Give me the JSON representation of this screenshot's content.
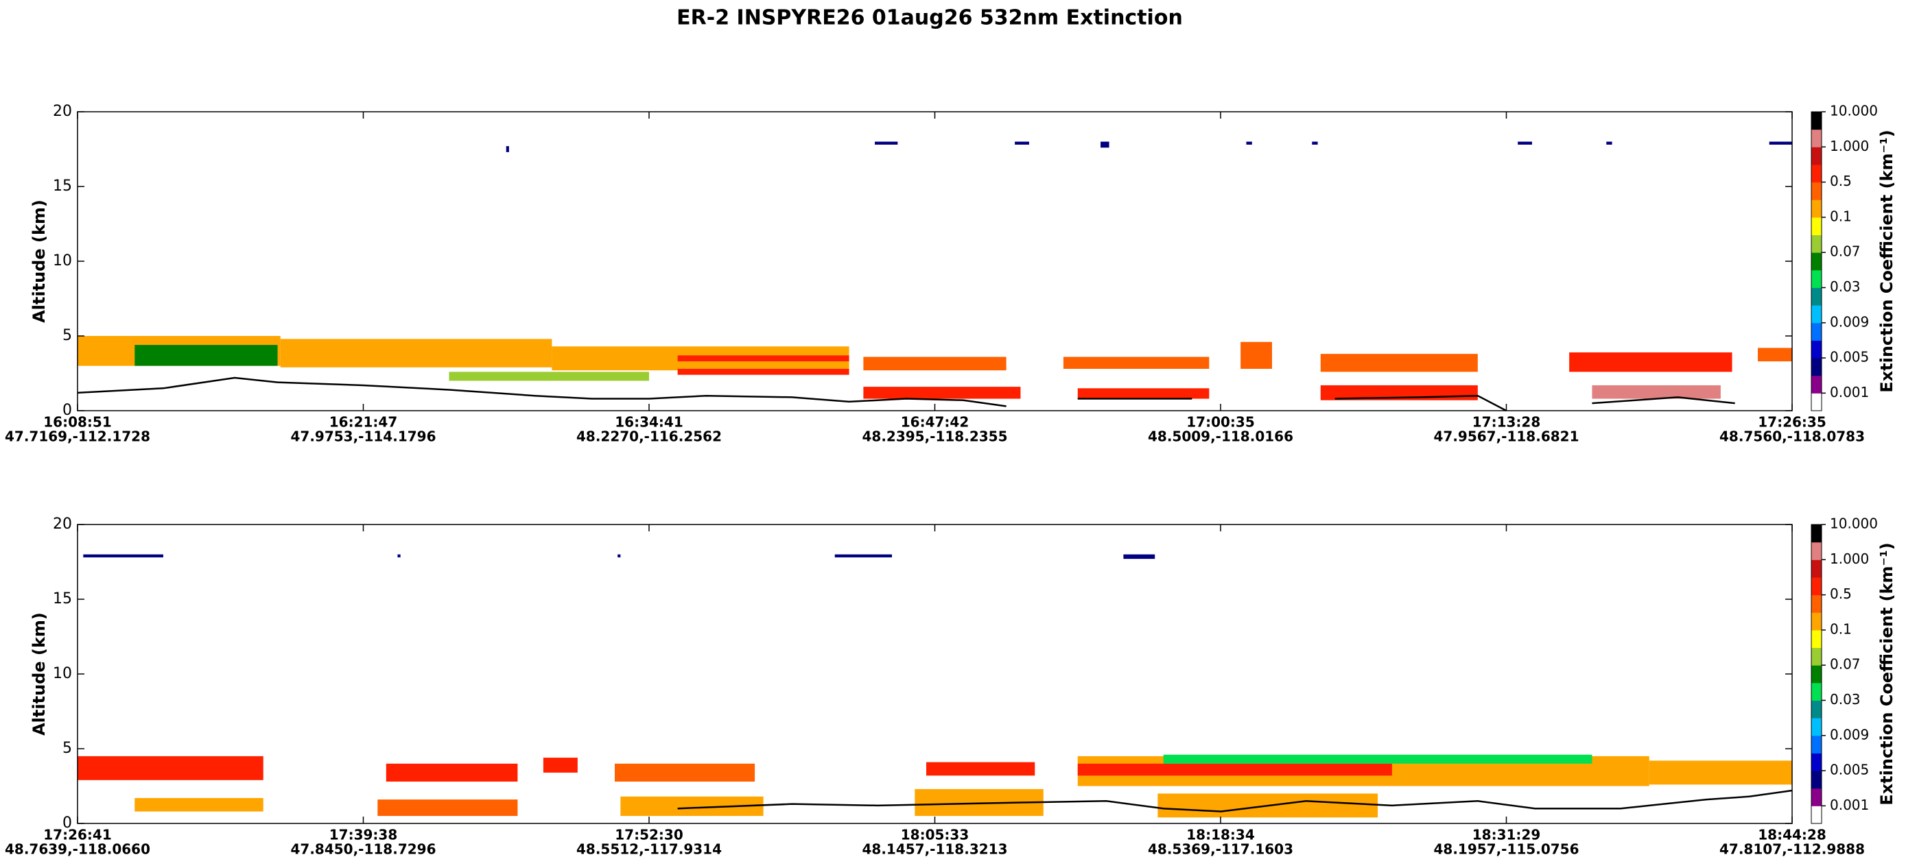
{
  "title": "ER-2  INSPYRE26  01aug26  532nm Extinction",
  "colorbar": {
    "label": "Extinction Coefficient (km⁻¹)",
    "colors": [
      "#ffffff",
      "#8b008b",
      "#000080",
      "#0000cd",
      "#0070ff",
      "#00bfff",
      "#008b8b",
      "#00e050",
      "#008000",
      "#9acd32",
      "#ffff00",
      "#ffa500",
      "#ff6000",
      "#ff2000",
      "#c81010",
      "#e08080",
      "#000000"
    ],
    "ticks": [
      0.001,
      0.005,
      0.009,
      0.03,
      0.07,
      0.1,
      0.5,
      {
        "value": 1,
        "label": "1.000"
      },
      {
        "value": 10,
        "label": "10.000"
      }
    ]
  },
  "chart_data": [
    {
      "type": "curtain",
      "ylabel": "Altitude (km)",
      "ylim": [
        0,
        20
      ],
      "yticks": [
        0,
        5,
        10,
        15,
        20
      ],
      "xlim": [
        0,
        6
      ],
      "xticks": [
        {
          "value": 0,
          "label": "16:08:51"
        },
        {
          "value": 1,
          "label": "16:21:47"
        },
        {
          "value": 2,
          "label": "16:34:41"
        },
        {
          "value": 3,
          "label": "16:47:42"
        },
        {
          "value": 4,
          "label": "17:00:35"
        },
        {
          "value": 5,
          "label": "17:13:28"
        },
        {
          "value": 6,
          "label": "17:26:35"
        }
      ],
      "xtick_locations": [
        "47.7169,-112.1728",
        "47.9753,-114.1796",
        "48.2270,-116.2562",
        "48.2395,-118.2355",
        "48.5009,-118.0166",
        "47.9567,-118.6821",
        "48.7560,-118.0783"
      ],
      "clouds": [
        {
          "x": [
            0,
            0.71
          ],
          "y": [
            3,
            5
          ],
          "color": "#ffa500"
        },
        {
          "x": [
            0.2,
            0.7
          ],
          "y": [
            3,
            4.4
          ],
          "color": "#008000"
        },
        {
          "x": [
            0.71,
            1.66
          ],
          "y": [
            2.9,
            4.8
          ],
          "color": "#ffa500"
        },
        {
          "x": [
            1.3,
            2.0
          ],
          "y": [
            2,
            2.6
          ],
          "color": "#9acd32"
        },
        {
          "x": [
            1.66,
            2.7
          ],
          "y": [
            2.7,
            4.3
          ],
          "color": "#ffa500"
        },
        {
          "x": [
            2.1,
            2.7
          ],
          "y": [
            3.3,
            3.7
          ],
          "color": "#ff2000"
        },
        {
          "x": [
            2.1,
            2.7
          ],
          "y": [
            2.4,
            2.8
          ],
          "color": "#ff2000"
        },
        {
          "x": [
            2.75,
            3.25
          ],
          "y": [
            2.7,
            3.6
          ],
          "color": "#ff6000"
        },
        {
          "x": [
            2.75,
            3.3
          ],
          "y": [
            0.8,
            1.6
          ],
          "color": "#ff2000"
        },
        {
          "x": [
            3.45,
            3.96
          ],
          "y": [
            2.8,
            3.6
          ],
          "color": "#ff6000"
        },
        {
          "x": [
            3.5,
            3.96
          ],
          "y": [
            0.8,
            1.5
          ],
          "color": "#ff2000"
        },
        {
          "x": [
            4.07,
            4.18
          ],
          "y": [
            2.8,
            4.6
          ],
          "color": "#ff6000"
        },
        {
          "x": [
            4.35,
            4.9
          ],
          "y": [
            2.6,
            3.8
          ],
          "color": "#ff6000"
        },
        {
          "x": [
            4.35,
            4.9
          ],
          "y": [
            0.7,
            1.7
          ],
          "color": "#ff2000"
        },
        {
          "x": [
            5.22,
            5.79
          ],
          "y": [
            2.6,
            3.9
          ],
          "color": "#ff2000"
        },
        {
          "x": [
            5.3,
            5.75
          ],
          "y": [
            0.8,
            1.7
          ],
          "color": "#e08080"
        },
        {
          "x": [
            5.88,
            6
          ],
          "y": [
            3.3,
            4.2
          ],
          "color": "#ff6000"
        },
        {
          "x": [
            1.5,
            1.51
          ],
          "y": [
            17.3,
            17.7
          ],
          "color": "#000080"
        },
        {
          "x": [
            2.79,
            2.87
          ],
          "y": [
            17.8,
            18
          ],
          "color": "#000080"
        },
        {
          "x": [
            3.28,
            3.33
          ],
          "y": [
            17.8,
            18
          ],
          "color": "#000080"
        },
        {
          "x": [
            3.58,
            3.61
          ],
          "y": [
            17.6,
            18
          ],
          "color": "#000080"
        },
        {
          "x": [
            4.09,
            4.11
          ],
          "y": [
            17.8,
            18
          ],
          "color": "#000080"
        },
        {
          "x": [
            4.32,
            4.34
          ],
          "y": [
            17.8,
            18
          ],
          "color": "#000080"
        },
        {
          "x": [
            5.04,
            5.09
          ],
          "y": [
            17.8,
            18
          ],
          "color": "#000080"
        },
        {
          "x": [
            5.35,
            5.37
          ],
          "y": [
            17.8,
            18
          ],
          "color": "#000080"
        },
        {
          "x": [
            5.92,
            6
          ],
          "y": [
            17.8,
            18
          ],
          "color": "#000080"
        }
      ],
      "surface": {
        "x": [
          0,
          0.3,
          0.55,
          0.7,
          1,
          1.3,
          1.6,
          1.8,
          2.0,
          2.2,
          2.5,
          2.7,
          2.9,
          3.1,
          3.25,
          3.3,
          3.5,
          3.9,
          4.0,
          4.4,
          4.7,
          4.9,
          5.0,
          5.1,
          5.3,
          5.6,
          5.8
        ],
        "values": [
          1.2,
          1.5,
          2.2,
          1.9,
          1.7,
          1.4,
          1.0,
          0.8,
          0.8,
          1.0,
          0.9,
          0.6,
          0.8,
          0.7,
          0.3,
          null,
          0.8,
          0.8,
          null,
          0.8,
          0.9,
          1.0,
          0,
          null,
          0.5,
          0.9,
          0.5
        ]
      }
    },
    {
      "type": "curtain",
      "ylabel": "Altitude (km)",
      "ylim": [
        0,
        20
      ],
      "yticks": [
        0,
        5,
        10,
        15,
        20
      ],
      "xlim": [
        0,
        6
      ],
      "xticks": [
        {
          "value": 0,
          "label": "17:26:41"
        },
        {
          "value": 1,
          "label": "17:39:38"
        },
        {
          "value": 2,
          "label": "17:52:30"
        },
        {
          "value": 3,
          "label": "18:05:33"
        },
        {
          "value": 4,
          "label": "18:18:34"
        },
        {
          "value": 5,
          "label": "18:31:29"
        },
        {
          "value": 6,
          "label": "18:44:28"
        }
      ],
      "xtick_locations": [
        "48.7639,-118.0660",
        "47.8450,-118.7296",
        "48.5512,-117.9314",
        "48.1457,-118.3213",
        "48.5369,-117.1603",
        "48.1957,-115.0756",
        "47.8107,-112.9888"
      ],
      "clouds": [
        {
          "x": [
            0,
            0.65
          ],
          "y": [
            2.9,
            4.5
          ],
          "color": "#ff2000"
        },
        {
          "x": [
            0.2,
            0.65
          ],
          "y": [
            0.8,
            1.7
          ],
          "color": "#ffa500"
        },
        {
          "x": [
            1.08,
            1.54
          ],
          "y": [
            2.8,
            4.0
          ],
          "color": "#ff2000"
        },
        {
          "x": [
            1.05,
            1.54
          ],
          "y": [
            0.5,
            1.6
          ],
          "color": "#ff6000"
        },
        {
          "x": [
            1.63,
            1.75
          ],
          "y": [
            3.4,
            4.4
          ],
          "color": "#ff2000"
        },
        {
          "x": [
            1.88,
            2.37
          ],
          "y": [
            2.8,
            4.0
          ],
          "color": "#ff6000"
        },
        {
          "x": [
            1.9,
            2.4
          ],
          "y": [
            0.5,
            1.8
          ],
          "color": "#ffa500"
        },
        {
          "x": [
            2.97,
            3.35
          ],
          "y": [
            3.2,
            4.1
          ],
          "color": "#ff2000"
        },
        {
          "x": [
            2.93,
            3.38
          ],
          "y": [
            0.5,
            2.3
          ],
          "color": "#ffa500"
        },
        {
          "x": [
            3.5,
            5.5
          ],
          "y": [
            2.5,
            4.5
          ],
          "color": "#ffa500"
        },
        {
          "x": [
            3.5,
            4.6
          ],
          "y": [
            3.2,
            4.0
          ],
          "color": "#ff2000"
        },
        {
          "x": [
            3.8,
            5.3
          ],
          "y": [
            4.0,
            4.6
          ],
          "color": "#00e050"
        },
        {
          "x": [
            3.78,
            4.55
          ],
          "y": [
            0.4,
            2.0
          ],
          "color": "#ffa500"
        },
        {
          "x": [
            5.5,
            6
          ],
          "y": [
            2.6,
            4.2
          ],
          "color": "#ffa500"
        },
        {
          "x": [
            0.02,
            0.3
          ],
          "y": [
            17.8,
            18
          ],
          "color": "#000080"
        },
        {
          "x": [
            1.12,
            1.13
          ],
          "y": [
            17.8,
            18
          ],
          "color": "#000080"
        },
        {
          "x": [
            1.89,
            1.9
          ],
          "y": [
            17.8,
            18
          ],
          "color": "#000080"
        },
        {
          "x": [
            2.65,
            2.85
          ],
          "y": [
            17.8,
            18
          ],
          "color": "#000080"
        },
        {
          "x": [
            3.66,
            3.77
          ],
          "y": [
            17.7,
            18
          ],
          "color": "#000080"
        }
      ],
      "surface": {
        "x": [
          2.1,
          2.5,
          2.8,
          3.3,
          3.6,
          3.8,
          4.0,
          4.3,
          4.6,
          4.9,
          5.1,
          5.4,
          5.5,
          5.7,
          5.85,
          6.0
        ],
        "values": [
          1.0,
          1.3,
          1.2,
          1.4,
          1.5,
          1.0,
          0.8,
          1.5,
          1.2,
          1.5,
          1.0,
          1.0,
          1.2,
          1.6,
          1.8,
          2.2
        ]
      }
    }
  ]
}
